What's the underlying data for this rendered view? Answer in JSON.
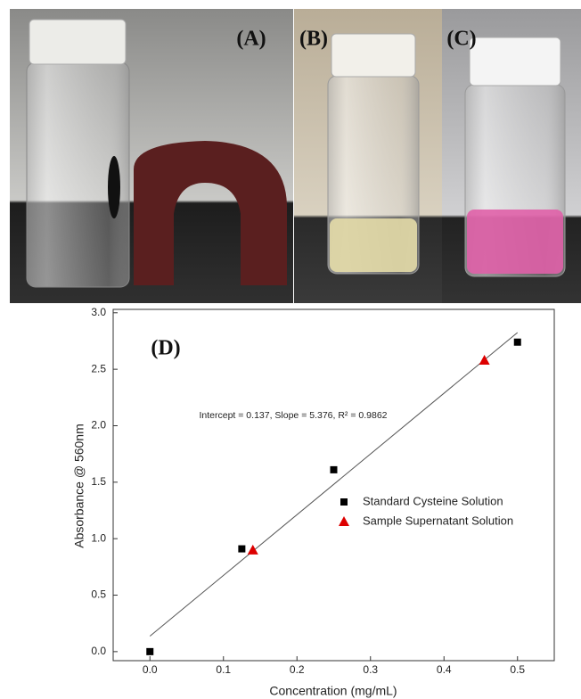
{
  "panels": [
    "(A)",
    "(B)",
    "(C)"
  ],
  "chart_data": {
    "type": "scatter",
    "panel_label": "(D)",
    "x_label": "Concentration (mg/mL)",
    "y_label": "Absorbance @ 560nm",
    "annotation": "Intercept = 0.137, Slope = 5.376, R² = 0.9862",
    "fit": {
      "intercept": 0.137,
      "slope": 5.376
    },
    "xlim": [
      -0.05,
      0.55
    ],
    "ylim": [
      -0.08,
      3.03
    ],
    "xticks": [
      {
        "value": 0,
        "label": "0.0"
      },
      0.1,
      0.2,
      0.3,
      0.4,
      0.5
    ],
    "yticks": [
      {
        "value": 0,
        "label": "0.0"
      },
      0.5,
      {
        "value": 1,
        "label": "1.0"
      },
      1.5,
      {
        "value": 2,
        "label": "2.0"
      },
      2.5,
      {
        "value": 3,
        "label": "3.0"
      }
    ],
    "series": [
      {
        "name": "Standard Cysteine Solution",
        "marker": "square",
        "color": "#000000",
        "x": [
          0,
          0.125,
          0.25,
          0.5
        ],
        "values": [
          0,
          0.91,
          1.61,
          2.74
        ]
      },
      {
        "name": "Sample Supernatant Solution",
        "marker": "triangle",
        "color": "#dd0000",
        "x": [
          0.14,
          0.455
        ],
        "values": [
          0.9,
          2.58
        ]
      }
    ]
  }
}
